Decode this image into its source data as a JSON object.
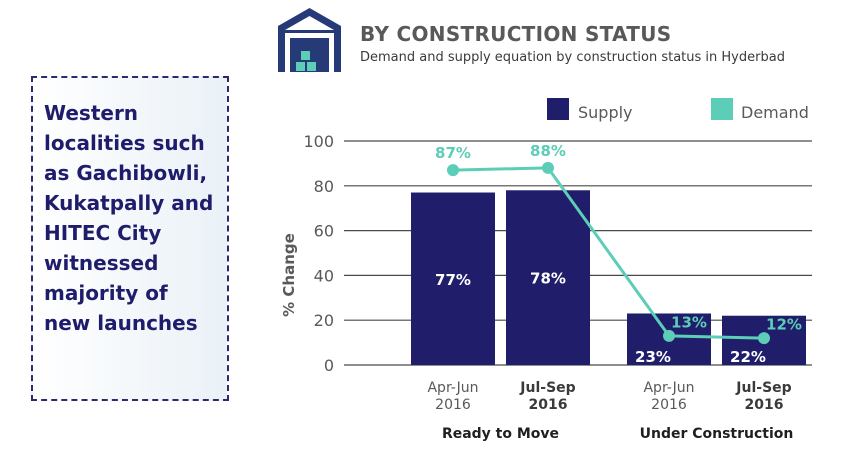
{
  "header": {
    "title": "BY CONSTRUCTION STATUS",
    "subtitle": "Demand and supply equation by construction status in Hyderbad",
    "icon": "warehouse-icon"
  },
  "callout": {
    "text": "Western localities such as Gachibowli, Kukatpally and HITEC City witnessed majority of new launches"
  },
  "colors": {
    "supply": "#201d6b",
    "demand": "#5ccdb6",
    "icon": "#253a76",
    "icon_accent": "#5ccdb6",
    "grid": "#4a4a4a"
  },
  "chart_data": {
    "type": "bar",
    "ylabel": "% Change",
    "xlabel": "",
    "ylim": [
      0,
      100
    ],
    "yticks": [
      0,
      20,
      40,
      60,
      80,
      100
    ],
    "grid": true,
    "legend_position": "top-right",
    "groups": [
      "Ready to Move",
      "Under Construction"
    ],
    "categories": [
      {
        "period": "Apr-Jun",
        "year": "2016",
        "group": 0,
        "bold": false
      },
      {
        "period": "Jul-Sep",
        "year": "2016",
        "group": 0,
        "bold": true
      },
      {
        "period": "Apr-Jun",
        "year": "2016",
        "group": 1,
        "bold": false
      },
      {
        "period": "Jul-Sep",
        "year": "2016",
        "group": 1,
        "bold": true
      }
    ],
    "series": [
      {
        "name": "Supply",
        "kind": "bar",
        "values": [
          77,
          78,
          23,
          22
        ],
        "labels": [
          "77%",
          "78%",
          "23%",
          "22%"
        ]
      },
      {
        "name": "Demand",
        "kind": "line",
        "values": [
          87,
          88,
          13,
          12
        ],
        "labels": [
          "87%",
          "88%",
          "13%",
          "12%"
        ]
      }
    ]
  }
}
